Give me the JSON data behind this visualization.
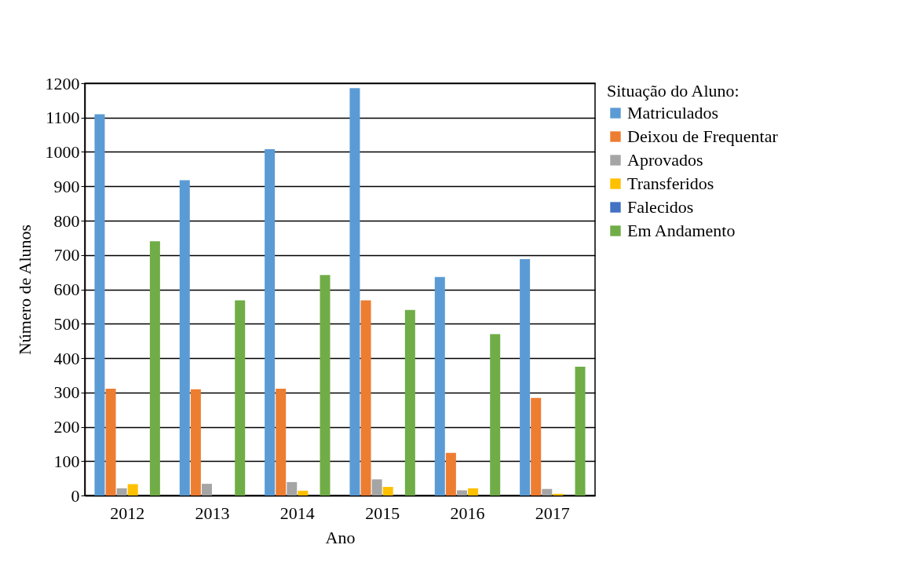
{
  "chart_data": {
    "type": "bar",
    "xlabel": "Ano",
    "ylabel": "Número de Alunos",
    "legend_title": "Situação do Aluno:",
    "categories": [
      "2012",
      "2013",
      "2014",
      "2015",
      "2016",
      "2017"
    ],
    "series": [
      {
        "name": "Matriculados",
        "color": "#5b9bd5",
        "values": [
          1110,
          918,
          1008,
          1186,
          636,
          688
        ]
      },
      {
        "name": "Deixou de Frequentar",
        "color": "#ed7d31",
        "values": [
          311,
          309,
          311,
          568,
          124,
          284
        ]
      },
      {
        "name": "Aprovados",
        "color": "#a5a5a5",
        "values": [
          21,
          34,
          39,
          47,
          15,
          19
        ]
      },
      {
        "name": "Transferidos",
        "color": "#ffc000",
        "values": [
          33,
          0,
          14,
          25,
          21,
          5
        ]
      },
      {
        "name": "Falecidos",
        "color": "#4472c4",
        "values": [
          0,
          0,
          0,
          0,
          0,
          0
        ]
      },
      {
        "name": "Em Andamento",
        "color": "#70ad47",
        "values": [
          740,
          568,
          642,
          540,
          470,
          375
        ]
      }
    ],
    "ylim": [
      0,
      1200
    ],
    "yticks": [
      0,
      100,
      200,
      300,
      400,
      500,
      600,
      700,
      800,
      900,
      1000,
      1100,
      1200
    ],
    "grid": "y",
    "legend": "right"
  }
}
